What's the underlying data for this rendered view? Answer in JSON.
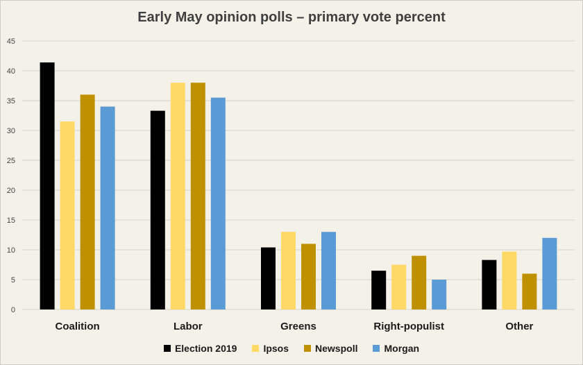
{
  "chart_data": {
    "type": "bar",
    "title": "Early May opinion polls  – primary vote percent",
    "categories": [
      "Coalition",
      "Labor",
      "Greens",
      "Right-populist",
      "Other"
    ],
    "series": [
      {
        "name": "Election 2019",
        "color": "#000000",
        "values": [
          41.4,
          33.3,
          10.4,
          6.5,
          8.3
        ]
      },
      {
        "name": "Ipsos",
        "color": "#ffd966",
        "values": [
          31.5,
          38,
          13,
          7.5,
          9.7
        ]
      },
      {
        "name": "Newspoll",
        "color": "#bf9000",
        "values": [
          36,
          38,
          11,
          9,
          6
        ]
      },
      {
        "name": "Morgan",
        "color": "#5b9bd5",
        "values": [
          34,
          35.5,
          13,
          5,
          12
        ]
      }
    ],
    "ylim": [
      0,
      45
    ],
    "yticks": [
      0,
      5,
      10,
      15,
      20,
      25,
      30,
      35,
      40,
      45
    ],
    "grid": true,
    "legend": "bottom"
  }
}
